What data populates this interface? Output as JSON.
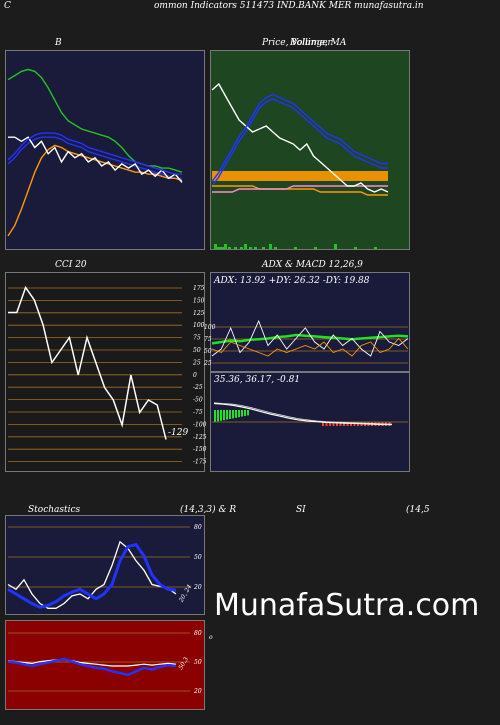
{
  "header": {
    "left": "C",
    "title": "ommon  Indicators 511473 IND.BANK MER munafasutra.in"
  },
  "watermark": "MunafaSutra.com",
  "chart_data": [
    {
      "id": "bollinger",
      "title": "B",
      "type": "line",
      "bg": "#1a1a3a",
      "series": [
        {
          "color": "#22c322",
          "values": [
            68,
            70,
            72,
            73,
            72,
            69,
            64,
            58,
            52,
            48,
            46,
            44,
            43,
            42,
            41,
            40,
            38,
            35,
            31,
            28,
            27,
            26,
            26,
            25,
            25,
            24,
            23
          ]
        },
        {
          "color": "#2233ff",
          "values": [
            27,
            30,
            34,
            37,
            39,
            40,
            40,
            40,
            39,
            37,
            36,
            35,
            33,
            32,
            31,
            30,
            29,
            28,
            27,
            26,
            25,
            24,
            23,
            22,
            21,
            20,
            20
          ]
        },
        {
          "color": "#ff9900",
          "values": [
            -8,
            -3,
            5,
            14,
            23,
            30,
            34,
            36,
            35,
            33,
            32,
            31,
            30,
            29,
            28,
            27,
            26,
            25,
            24,
            23,
            23,
            22,
            22,
            21,
            20,
            20,
            19
          ]
        },
        {
          "color": "#ffffff",
          "values": [
            40,
            40,
            38,
            40,
            35,
            38,
            32,
            35,
            28,
            33,
            30,
            32,
            28,
            30,
            26,
            28,
            24,
            27,
            25,
            27,
            22,
            24,
            21,
            24,
            20,
            22,
            18
          ]
        }
      ],
      "ylim": [
        -10,
        80
      ]
    },
    {
      "id": "price",
      "title": "Price,  Volume, MA",
      "title_overlay": "Bollinger",
      "type": "line",
      "bg": "#1e4620",
      "series": [
        {
          "color": "#2233ff",
          "values": [
            18,
            21,
            25,
            29,
            33,
            36,
            40,
            44,
            46,
            47,
            46,
            45,
            44,
            42,
            40,
            38,
            36,
            34,
            33,
            32,
            30,
            28,
            27,
            26,
            25,
            24,
            24
          ]
        },
        {
          "color": "#ff9900",
          "values": [
            18,
            18,
            18,
            18,
            18,
            18,
            18,
            17,
            17,
            17,
            17,
            17,
            17,
            17,
            17,
            17,
            16,
            16,
            16,
            16,
            16,
            16,
            16,
            15,
            15,
            15,
            15
          ]
        },
        {
          "color": "#ff88cc",
          "values": [
            16,
            16,
            16,
            16,
            17,
            17,
            17,
            17,
            17,
            17,
            17,
            17,
            18,
            18,
            18,
            18,
            18,
            18,
            18,
            18,
            18,
            18,
            18,
            18,
            18,
            18,
            18
          ]
        },
        {
          "color": "#ffffff",
          "values": [
            50,
            52,
            48,
            44,
            40,
            38,
            36,
            37,
            38,
            36,
            34,
            33,
            32,
            30,
            32,
            28,
            26,
            24,
            22,
            20,
            18,
            18,
            19,
            17,
            16,
            17,
            16
          ]
        }
      ],
      "ylim": [
        0,
        60
      ]
    },
    {
      "id": "cci",
      "title": "CCI 20",
      "type": "line",
      "ticks": [
        "175",
        "150",
        "125",
        "100",
        "75",
        "50",
        "25",
        "0",
        "-25",
        "-50",
        "-75",
        "-100",
        "-125",
        "-150",
        "-175"
      ],
      "readout": "-129",
      "values": [
        125,
        125,
        175,
        150,
        100,
        25,
        50,
        75,
        0,
        75,
        25,
        -25,
        -50,
        -100,
        0,
        -75,
        -50,
        -60,
        -129
      ],
      "ylim": [
        -190,
        190
      ]
    },
    {
      "id": "adx",
      "title": "ADX  & MACD 12,26,9",
      "type": "line",
      "readout": "ADX: 13.92  +DY: 26.32  -DY: 19.88",
      "ticks": [
        "100",
        "75",
        "50",
        "25"
      ]
    },
    {
      "id": "macd",
      "type": "bar",
      "readout": "35.36,  36.17,  -0.81"
    },
    {
      "id": "stochastics",
      "title_left": "Stochastics",
      "title_mid": "(14,3,3) & R",
      "ticks": [
        "80",
        "50",
        "20"
      ],
      "readout": "20, 24",
      "series": [
        {
          "color": "#2233ff",
          "values": [
            25,
            20,
            15,
            10,
            6,
            8,
            12,
            18,
            22,
            25,
            20,
            15,
            20,
            30,
            55,
            70,
            72,
            60,
            40,
            30,
            25,
            24
          ]
        },
        {
          "color": "#ffffff",
          "values": [
            30,
            25,
            35,
            20,
            10,
            5,
            5,
            10,
            18,
            20,
            15,
            25,
            30,
            50,
            75,
            68,
            55,
            45,
            30,
            28,
            26,
            20
          ]
        }
      ],
      "ylim": [
        0,
        100
      ]
    },
    {
      "id": "rsi",
      "title_left": "SI",
      "title_right": "(14,5",
      "ticks": [
        "80",
        "50",
        "20"
      ],
      "readout": "50.3",
      "series": [
        {
          "color": "#2233ff",
          "values": [
            55,
            54,
            52,
            50,
            52,
            54,
            56,
            58,
            55,
            52,
            50,
            48,
            47,
            44,
            42,
            40,
            44,
            48,
            46,
            49,
            51,
            50
          ]
        },
        {
          "color": "#ffffff",
          "values": [
            56,
            55,
            54,
            53,
            55,
            56,
            57,
            57,
            56,
            54,
            53,
            52,
            51,
            50,
            50,
            50,
            51,
            52,
            51,
            52,
            53,
            52
          ]
        }
      ],
      "ylim": [
        0,
        100
      ]
    }
  ]
}
